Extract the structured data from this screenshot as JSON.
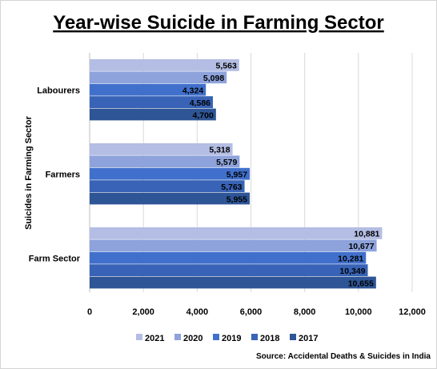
{
  "chart_data": {
    "type": "bar",
    "orientation": "horizontal",
    "title": "Year-wise Suicide in Farming Sector",
    "ylabel": "Suicides  in Farming Sector",
    "xlabel": "",
    "categories": [
      "Labourers",
      "Farmers",
      "Farm Sector"
    ],
    "series": [
      {
        "name": "2021",
        "color": "#b4bde3",
        "values": [
          5563,
          5318,
          10881
        ]
      },
      {
        "name": "2020",
        "color": "#8ea3db",
        "values": [
          5098,
          5579,
          10677
        ]
      },
      {
        "name": "2019",
        "color": "#4170cc",
        "values": [
          4324,
          5957,
          10281
        ]
      },
      {
        "name": "2018",
        "color": "#3863b6",
        "values": [
          4586,
          5763,
          10349
        ]
      },
      {
        "name": "2017",
        "color": "#2e5596",
        "values": [
          4700,
          5955,
          10655
        ]
      }
    ],
    "value_labels": [
      [
        "5,563",
        "5,318",
        "10,881"
      ],
      [
        "5,098",
        "5,579",
        "10,677"
      ],
      [
        "4,324",
        "5,957",
        "10,281"
      ],
      [
        "4,586",
        "5,763",
        "10,349"
      ],
      [
        "4,700",
        "5,955",
        "10,655"
      ]
    ],
    "xlim": [
      0,
      12000
    ],
    "xticks": [
      0,
      2000,
      4000,
      6000,
      8000,
      10000,
      12000
    ],
    "xtick_labels": [
      "0",
      "2,000",
      "4,000",
      "6,000",
      "8,000",
      "10,000",
      "12,000"
    ],
    "grid": true,
    "legend_position": "bottom",
    "source": "Source: Accidental Deaths & Suicides in India"
  }
}
